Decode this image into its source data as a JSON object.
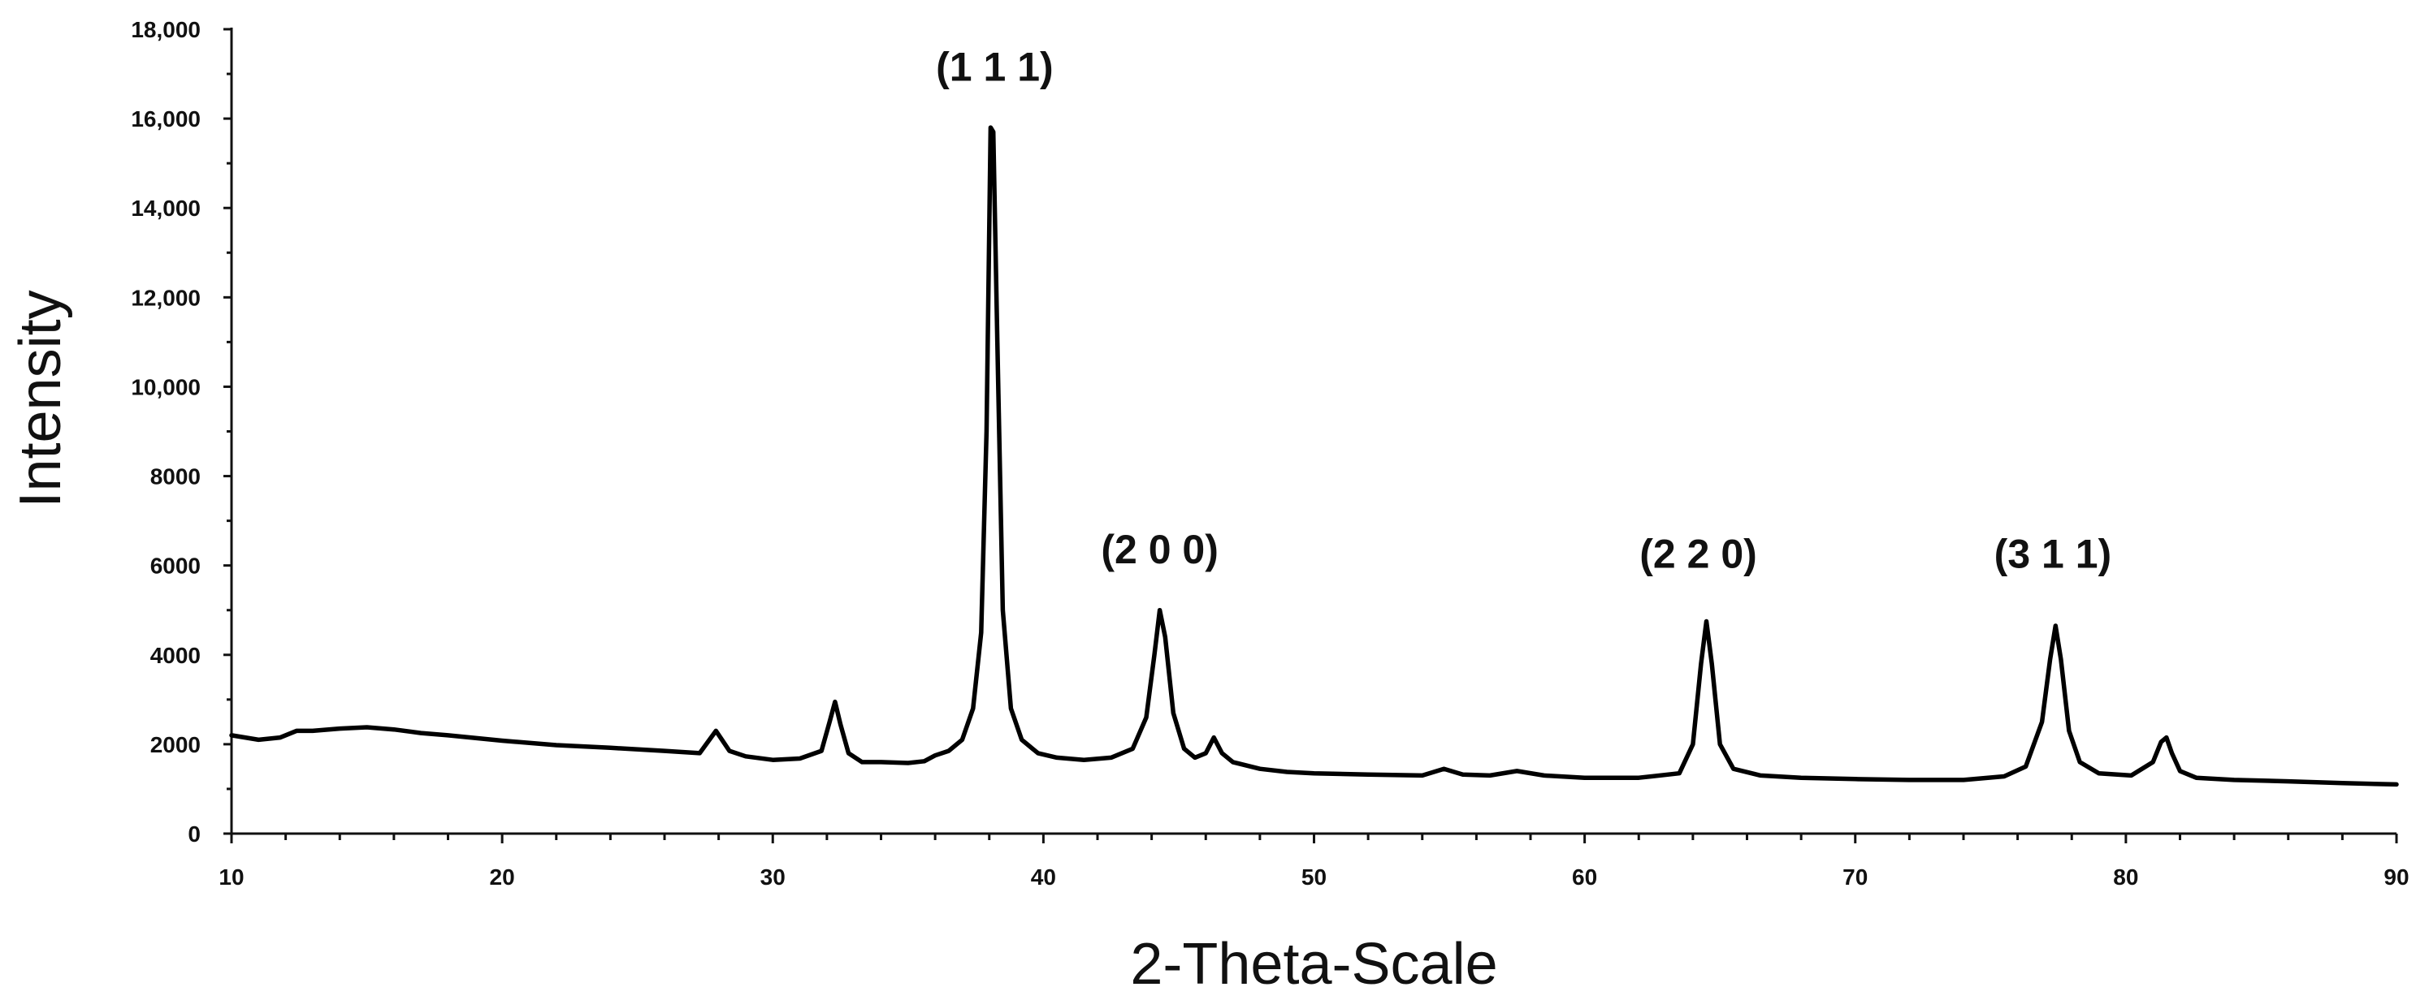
{
  "chart_data": {
    "type": "line",
    "title": "",
    "xlabel": "2-Theta-Scale",
    "ylabel": "Intensity",
    "xlim": [
      10,
      90
    ],
    "ylim": [
      0,
      18000
    ],
    "grid": false,
    "x_ticks": [
      10,
      20,
      30,
      40,
      50,
      60,
      70,
      80,
      90
    ],
    "x_tick_labels": [
      "10",
      "20",
      "30",
      "40",
      "50",
      "60",
      "70",
      "80",
      "90"
    ],
    "y_ticks": [
      0,
      2000,
      4000,
      6000,
      8000,
      10000,
      12000,
      14000,
      16000,
      18000
    ],
    "y_tick_labels": [
      "0",
      "2000",
      "4000",
      "6000",
      "8000",
      "10,000",
      "12,000",
      "14,000",
      "16,000",
      "18,000"
    ],
    "annotations": [
      {
        "text": "(1 1 1)",
        "x": 38.2,
        "y": 16850
      },
      {
        "text": "(2 0 0)",
        "x": 44.3,
        "y": 6050
      },
      {
        "text": "(2 2 0)",
        "x": 64.2,
        "y": 5950
      },
      {
        "text": "(3 1 1)",
        "x": 77.3,
        "y": 5950
      }
    ],
    "series": [
      {
        "color": "#000000",
        "x": [
          10,
          11,
          11.8,
          12.4,
          13,
          14,
          15,
          16,
          17,
          18,
          20,
          22,
          24,
          26,
          27.3,
          27.9,
          28.4,
          29,
          30,
          31,
          31.8,
          32.1,
          32.3,
          32.5,
          32.8,
          33.3,
          34,
          35,
          35.6,
          36,
          36.5,
          37,
          37.4,
          37.7,
          37.9,
          38.05,
          38.15,
          38.3,
          38.5,
          38.8,
          39.2,
          39.8,
          40.5,
          41.5,
          42.5,
          43.3,
          43.8,
          44.1,
          44.3,
          44.5,
          44.8,
          45.2,
          45.6,
          46,
          46.3,
          46.6,
          47,
          48,
          49,
          50,
          52,
          54,
          54.8,
          55.5,
          56.5,
          57.5,
          58.5,
          60,
          62,
          63.5,
          64,
          64.3,
          64.5,
          64.7,
          65,
          65.5,
          66.5,
          68,
          70,
          72,
          74,
          75.5,
          76.3,
          76.9,
          77.2,
          77.4,
          77.6,
          77.9,
          78.3,
          79,
          80.2,
          81,
          81.3,
          81.5,
          81.7,
          82,
          82.6,
          84,
          86,
          88,
          90
        ],
        "values": [
          2200,
          2100,
          2150,
          2300,
          2300,
          2350,
          2380,
          2330,
          2250,
          2200,
          2080,
          1980,
          1920,
          1850,
          1800,
          2300,
          1850,
          1730,
          1650,
          1680,
          1850,
          2500,
          2950,
          2450,
          1800,
          1600,
          1600,
          1580,
          1620,
          1750,
          1850,
          2100,
          2800,
          4500,
          9000,
          15800,
          15700,
          11000,
          5000,
          2800,
          2100,
          1800,
          1700,
          1650,
          1700,
          1900,
          2600,
          4000,
          5000,
          4400,
          2700,
          1900,
          1700,
          1800,
          2150,
          1800,
          1600,
          1450,
          1380,
          1350,
          1320,
          1300,
          1450,
          1320,
          1300,
          1400,
          1300,
          1250,
          1250,
          1350,
          2000,
          3800,
          4750,
          3800,
          2000,
          1450,
          1300,
          1250,
          1220,
          1200,
          1200,
          1280,
          1500,
          2500,
          3900,
          4650,
          3900,
          2300,
          1600,
          1350,
          1300,
          1600,
          2050,
          2150,
          1800,
          1400,
          1250,
          1200,
          1170,
          1130,
          1100
        ]
      }
    ]
  }
}
